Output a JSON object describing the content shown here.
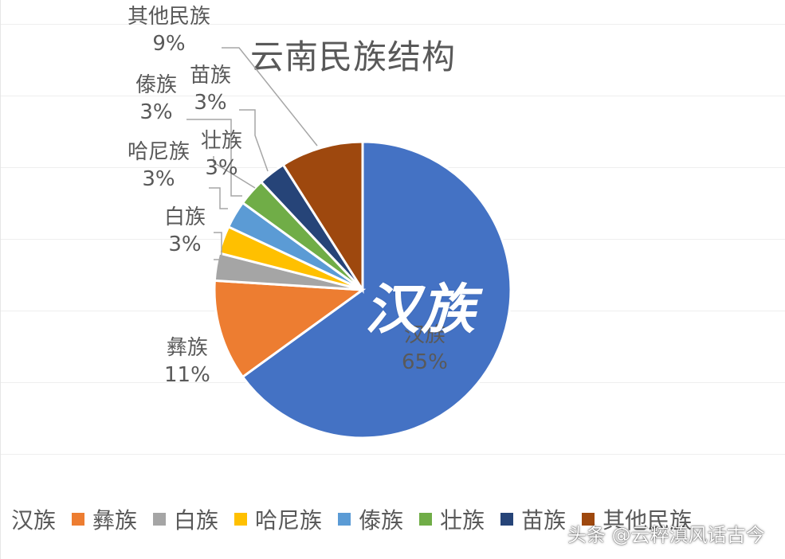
{
  "chart_data": {
    "type": "pie",
    "title": "云南民族结构",
    "slices": [
      {
        "name": "汉族",
        "value": 65,
        "label": "65%",
        "color": "#4472C4"
      },
      {
        "name": "彝族",
        "value": 11,
        "label": "11%",
        "color": "#ED7D31"
      },
      {
        "name": "白族",
        "value": 3,
        "label": "3%",
        "color": "#A5A5A5"
      },
      {
        "name": "哈尼族",
        "value": 3,
        "label": "3%",
        "color": "#FFC000"
      },
      {
        "name": "傣族",
        "value": 3,
        "label": "3%",
        "color": "#5B9BD5"
      },
      {
        "name": "壮族",
        "value": 3,
        "label": "3%",
        "color": "#70AD47"
      },
      {
        "name": "苗族",
        "value": 3,
        "label": "3%",
        "color": "#264478"
      },
      {
        "name": "其他民族",
        "value": 9,
        "label": "9%",
        "color": "#9E480E"
      }
    ],
    "legend": [
      "汉族",
      "彝族",
      "白族",
      "哈尼族",
      "傣族",
      "壮族",
      "苗族",
      "其他民族"
    ],
    "legend_position": "bottom"
  },
  "overlay_text": "汉族",
  "watermark": "头条 @云粹滇风话古今"
}
